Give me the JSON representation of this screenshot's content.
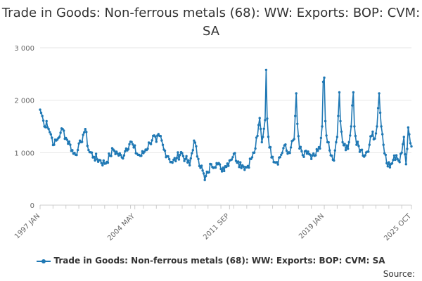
{
  "chart_data": {
    "type": "line",
    "title": "Trade in Goods: Non-ferrous metals (68): WW: Exports: BOP: CVM: SA",
    "xlabel": "",
    "ylabel": "",
    "ylim": [
      0,
      3000
    ],
    "y_ticks": [
      {
        "value": 0,
        "label": "0"
      },
      {
        "value": 1000,
        "label": "1 000"
      },
      {
        "value": 2000,
        "label": "2 000"
      },
      {
        "value": 3000,
        "label": "3 000"
      }
    ],
    "x_start": "1997-01",
    "x_end": "2025-10",
    "x_ticks": [
      {
        "index": 0,
        "label": "1997 JAN"
      },
      {
        "index": 88,
        "label": "2004 MAY"
      },
      {
        "index": 176,
        "label": "2011 SEP"
      },
      {
        "index": 264,
        "label": "2019 JAN"
      },
      {
        "index": 345,
        "label": "2025 OCT"
      }
    ],
    "grid": true,
    "legend_position": "bottom",
    "series": [
      {
        "name": "Trade in Goods: Non-ferrous metals (68): WW: Exports: BOP: CVM: SA",
        "color": "#1f78b4",
        "anchors": [
          [
            0,
            1820
          ],
          [
            2,
            1700
          ],
          [
            4,
            1500
          ],
          [
            6,
            1600
          ],
          [
            8,
            1450
          ],
          [
            10,
            1350
          ],
          [
            13,
            1150
          ],
          [
            16,
            1250
          ],
          [
            19,
            1380
          ],
          [
            21,
            1450
          ],
          [
            24,
            1280
          ],
          [
            28,
            1150
          ],
          [
            31,
            980
          ],
          [
            35,
            1050
          ],
          [
            38,
            1200
          ],
          [
            40,
            1340
          ],
          [
            42,
            1450
          ],
          [
            45,
            1050
          ],
          [
            50,
            920
          ],
          [
            55,
            860
          ],
          [
            60,
            790
          ],
          [
            65,
            940
          ],
          [
            68,
            1060
          ],
          [
            72,
            980
          ],
          [
            76,
            910
          ],
          [
            80,
            1080
          ],
          [
            84,
            1210
          ],
          [
            87,
            1100
          ],
          [
            90,
            980
          ],
          [
            94,
            940
          ],
          [
            98,
            1060
          ],
          [
            102,
            1180
          ],
          [
            105,
            1320
          ],
          [
            108,
            1210
          ],
          [
            111,
            1320
          ],
          [
            115,
            1060
          ],
          [
            119,
            930
          ],
          [
            123,
            810
          ],
          [
            127,
            900
          ],
          [
            131,
            1010
          ],
          [
            135,
            880
          ],
          [
            139,
            760
          ],
          [
            143,
            1230
          ],
          [
            147,
            880
          ],
          [
            151,
            660
          ],
          [
            153,
            480
          ],
          [
            156,
            620
          ],
          [
            159,
            780
          ],
          [
            164,
            800
          ],
          [
            168,
            690
          ],
          [
            172,
            740
          ],
          [
            176,
            850
          ],
          [
            180,
            980
          ],
          [
            184,
            830
          ],
          [
            188,
            760
          ],
          [
            192,
            720
          ],
          [
            196,
            880
          ],
          [
            199,
            1000
          ],
          [
            202,
            1320
          ],
          [
            204,
            1660
          ],
          [
            206,
            1200
          ],
          [
            209,
            1620
          ],
          [
            210,
            2580
          ],
          [
            211,
            1650
          ],
          [
            213,
            1100
          ],
          [
            216,
            920
          ],
          [
            220,
            820
          ],
          [
            224,
            960
          ],
          [
            227,
            1140
          ],
          [
            230,
            980
          ],
          [
            233,
            1100
          ],
          [
            236,
            1260
          ],
          [
            237,
            1700
          ],
          [
            238,
            2130
          ],
          [
            239,
            1550
          ],
          [
            241,
            1080
          ],
          [
            245,
            920
          ],
          [
            249,
            1020
          ],
          [
            252,
            880
          ],
          [
            256,
            950
          ],
          [
            260,
            1080
          ],
          [
            262,
            1500
          ],
          [
            263,
            2350
          ],
          [
            264,
            2430
          ],
          [
            265,
            1600
          ],
          [
            267,
            1200
          ],
          [
            270,
            950
          ],
          [
            273,
            850
          ],
          [
            276,
            1300
          ],
          [
            277,
            1700
          ],
          [
            278,
            2150
          ],
          [
            279,
            1600
          ],
          [
            281,
            1200
          ],
          [
            284,
            1050
          ],
          [
            287,
            1200
          ],
          [
            289,
            1500
          ],
          [
            290,
            1900
          ],
          [
            291,
            2150
          ],
          [
            292,
            1500
          ],
          [
            294,
            1150
          ],
          [
            298,
            1050
          ],
          [
            302,
            950
          ],
          [
            306,
            1150
          ],
          [
            309,
            1400
          ],
          [
            311,
            1270
          ],
          [
            313,
            1500
          ],
          [
            314,
            1850
          ],
          [
            315,
            2130
          ],
          [
            317,
            1500
          ],
          [
            319,
            1150
          ],
          [
            322,
            800
          ],
          [
            325,
            720
          ],
          [
            328,
            860
          ],
          [
            331,
            950
          ],
          [
            334,
            820
          ],
          [
            336,
            1000
          ],
          [
            338,
            1300
          ],
          [
            340,
            780
          ],
          [
            342,
            1480
          ],
          [
            343,
            1350
          ],
          [
            344,
            1180
          ],
          [
            345,
            1120
          ]
        ]
      }
    ]
  },
  "legend": {
    "label": "Trade in Goods: Non-ferrous metals (68): WW: Exports: BOP: CVM: SA"
  },
  "source": {
    "label": "Source:"
  }
}
